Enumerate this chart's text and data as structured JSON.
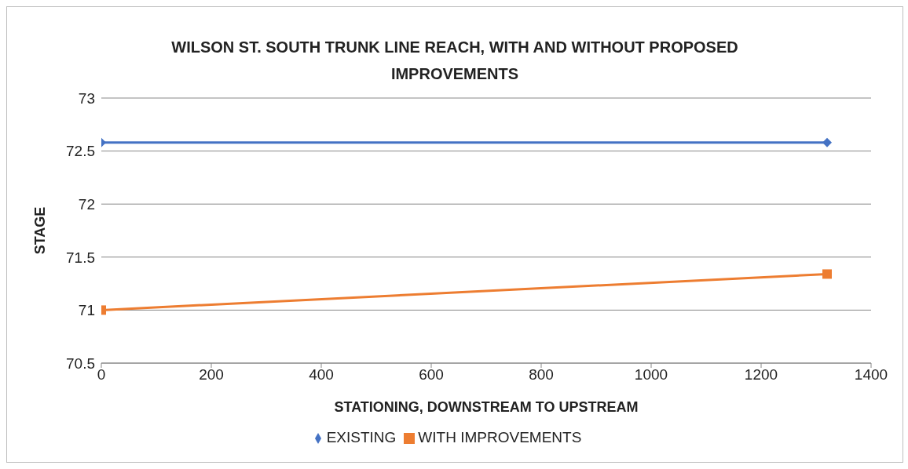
{
  "chart_data": {
    "type": "line",
    "title": "WILSON ST. SOUTH TRUNK LINE REACH, WITH AND WITHOUT PROPOSED IMPROVEMENTS",
    "xlabel": "STATIONING, DOWNSTREAM TO UPSTREAM",
    "ylabel": "STAGE",
    "x": [
      0,
      1320
    ],
    "series": [
      {
        "name": "EXISTING",
        "color": "#4472c4",
        "values": [
          72.58,
          72.58
        ],
        "marker": "diamond"
      },
      {
        "name": "WITH IMPROVEMENTS",
        "color": "#ed7d31",
        "values": [
          71.0,
          71.34
        ],
        "marker": "square"
      }
    ],
    "xlim": [
      0,
      1400
    ],
    "xticks": [
      0,
      200,
      400,
      600,
      800,
      1000,
      1200,
      1400
    ],
    "ylim": [
      70.5,
      73
    ],
    "yticks": [
      70.5,
      71,
      71.5,
      72,
      72.5,
      73
    ],
    "grid": "y",
    "legend": "bottom"
  }
}
